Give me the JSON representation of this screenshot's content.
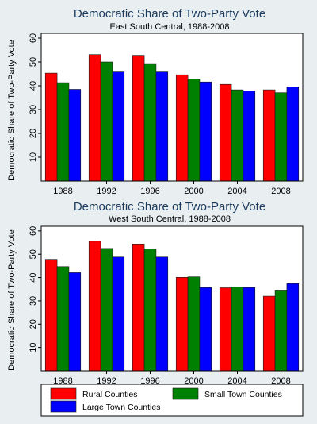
{
  "colors": {
    "rural": "#ff0000",
    "small_town": "#008000",
    "large_town": "#0000ff",
    "title": "#1a3b5e"
  },
  "legend": {
    "items": [
      {
        "label": "Rural Counties",
        "color": "#ff0000"
      },
      {
        "label": "Small Town Counties",
        "color": "#008000"
      },
      {
        "label": "Large Town Counties",
        "color": "#0000ff"
      }
    ]
  },
  "chart_data": [
    {
      "type": "bar",
      "title": "Democratic Share of Two-Party Vote",
      "subtitle": "East South Central, 1988-2008",
      "xlabel": "",
      "ylabel": "Democratic Share of Two-Party Vote",
      "ylim": [
        0,
        62
      ],
      "yticks": [
        10,
        20,
        30,
        40,
        50,
        60
      ],
      "grid": false,
      "categories": [
        "1988",
        "1992",
        "1996",
        "2000",
        "2004",
        "2008"
      ],
      "series": [
        {
          "name": "Rural Counties",
          "color": "#ff0000",
          "values": [
            45.3,
            53.1,
            52.8,
            44.6,
            40.6,
            38.3
          ]
        },
        {
          "name": "Small Town Counties",
          "color": "#008000",
          "values": [
            41.3,
            50.0,
            49.3,
            42.8,
            38.3,
            37.1
          ]
        },
        {
          "name": "Large Town Counties",
          "color": "#0000ff",
          "values": [
            38.5,
            45.8,
            45.8,
            41.6,
            37.8,
            39.5
          ]
        }
      ]
    },
    {
      "type": "bar",
      "title": "Democratic Share of Two-Party Vote",
      "subtitle": "West South Central, 1988-2008",
      "xlabel": "",
      "ylabel": "Democratic Share of Two-Party Vote",
      "ylim": [
        0,
        62
      ],
      "yticks": [
        10,
        20,
        30,
        40,
        50,
        60
      ],
      "grid": false,
      "categories": [
        "1988",
        "1992",
        "1996",
        "2000",
        "2004",
        "2008"
      ],
      "series": [
        {
          "name": "Rural Counties",
          "color": "#ff0000",
          "values": [
            47.8,
            55.6,
            54.4,
            40.1,
            35.6,
            32.0
          ]
        },
        {
          "name": "Small Town Counties",
          "color": "#008000",
          "values": [
            44.7,
            52.5,
            52.3,
            40.3,
            35.9,
            34.6
          ]
        },
        {
          "name": "Large Town Counties",
          "color": "#0000ff",
          "values": [
            42.1,
            48.8,
            48.8,
            35.7,
            35.7,
            37.4
          ]
        }
      ]
    }
  ]
}
